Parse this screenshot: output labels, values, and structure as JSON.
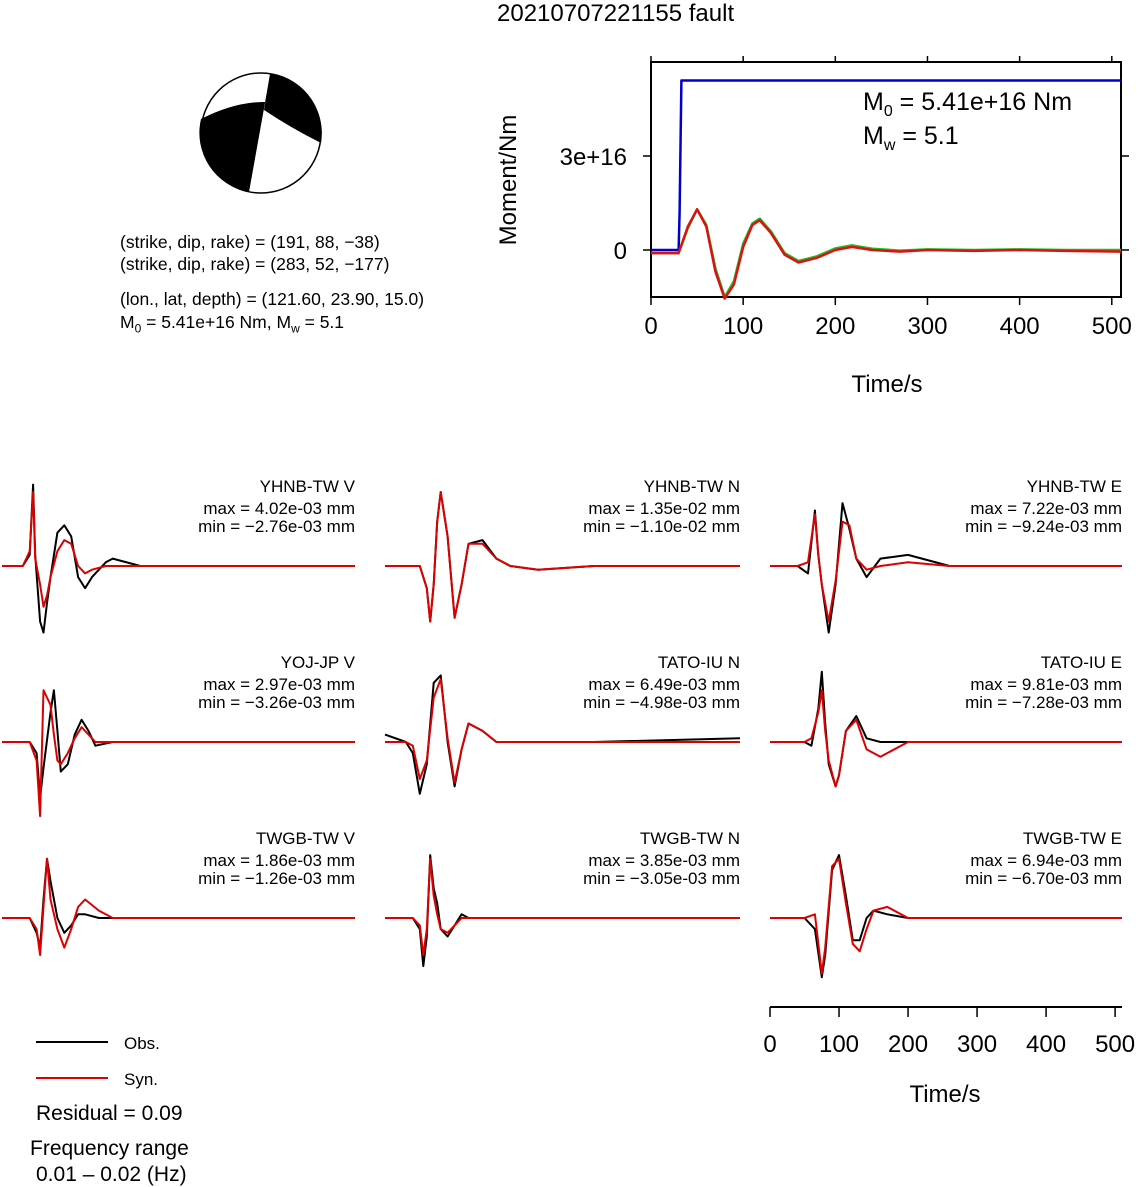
{
  "title": "20210707221155 fault",
  "beachball": {
    "colors": {
      "fill": "#000000",
      "background": "#ffffff"
    }
  },
  "info": {
    "plane1": "(strike, dip, rake) = (191, 88, −38)",
    "plane2": "(strike, dip, rake) = (283, 52, −177)",
    "location": "(lon., lat, depth) = (121.60, 23.90, 15.0)",
    "m0_prefix": "M",
    "m0_sub": "0",
    "m0_rest": " = 5.41e+16 Nm, M",
    "mw_sub": "w",
    "mw_rest": " = 5.1"
  },
  "chart_data": [
    {
      "type": "line",
      "name": "moment-rate",
      "xlabel": "Time/s",
      "ylabel": "Moment/Nm",
      "xlim": [
        0,
        510
      ],
      "ylim": [
        -15000000000000000,
        60000000000000000
      ],
      "xticks": [
        0,
        100,
        200,
        300,
        400,
        500
      ],
      "xtick_labels": [
        "0",
        "100",
        "200",
        "300",
        "400",
        "500"
      ],
      "yticks": [
        0,
        30000000000000000
      ],
      "ytick_labels": [
        "0",
        "3e+16"
      ],
      "annotation": {
        "m0_prefix": "M",
        "m0_sub": "0",
        "m0_rest": " = 5.41e+16 Nm",
        "mw_prefix": "M",
        "mw_sub": "w",
        "mw_rest": " = 5.1"
      },
      "series": [
        {
          "color": "#0000cc",
          "x": [
            0,
            30,
            31,
            33,
            510
          ],
          "y": [
            0,
            0,
            12000000000000000,
            54100000000000000,
            54100000000000000
          ]
        },
        {
          "color": "#22bb22",
          "x": [
            0,
            30,
            40,
            50,
            60,
            70,
            80,
            90,
            100,
            110,
            118,
            130,
            145,
            160,
            180,
            200,
            218,
            240,
            270,
            300,
            350,
            400,
            450,
            510
          ],
          "y": [
            -1000000000000000,
            -1000000000000000,
            7000000000000000,
            13000000000000000,
            8000000000000000,
            -6000000000000000,
            -15000000000000000,
            -10000000000000000,
            2000000000000000,
            8500000000000000,
            10000000000000000,
            6000000000000000,
            -1000000000000000,
            -3500000000000000,
            -2000000000000000,
            500000000000000,
            1500000000000000,
            400000000000000,
            -200000000000000,
            200000000000000,
            0,
            200000000000000,
            0,
            0
          ]
        },
        {
          "color": "#dd1111",
          "x": [
            0,
            30,
            40,
            50,
            60,
            70,
            80,
            90,
            100,
            110,
            118,
            130,
            145,
            160,
            180,
            200,
            218,
            240,
            270,
            300,
            350,
            400,
            450,
            510
          ],
          "y": [
            -1000000000000000,
            -1000000000000000,
            7500000000000000,
            13000000000000000,
            7500000000000000,
            -7000000000000000,
            -15500000000000000,
            -11000000000000000,
            1000000000000000,
            8000000000000000,
            9500000000000000,
            5500000000000000,
            -1500000000000000,
            -4000000000000000,
            -2500000000000000,
            0,
            1000000000000000,
            0,
            -500000000000000,
            0,
            -300000000000000,
            0,
            -300000000000000,
            -500000000000000
          ]
        }
      ]
    },
    {
      "type": "line",
      "name": "waveform-fits",
      "xlabel": "Time/s",
      "xlim": [
        0,
        510
      ],
      "xticks": [
        0,
        100,
        200,
        300,
        400,
        500
      ],
      "xtick_labels": [
        "0",
        "100",
        "200",
        "300",
        "400",
        "500"
      ],
      "series_colors": {
        "obs": "#000000",
        "syn": "#dd0000"
      },
      "traces": [
        {
          "station": "YHNB-TW V",
          "max": "max = 4.02e-03 mm",
          "min": "min = −2.76e-03 mm",
          "obs": {
            "x": [
              0,
              30,
              40,
              45,
              48,
              55,
              60,
              65,
              70,
              80,
              90,
              100,
              110,
              120,
              130,
              150,
              160,
              200,
              300,
              510
            ],
            "y": [
              0,
              0,
              0.3,
              2.2,
              0.3,
              -1.5,
              -1.8,
              -1,
              -0.3,
              0.9,
              1.1,
              0.8,
              -0.3,
              -0.6,
              -0.3,
              0.1,
              0.2,
              0,
              0,
              0
            ]
          },
          "syn": {
            "x": [
              0,
              30,
              40,
              45,
              48,
              55,
              60,
              65,
              70,
              80,
              90,
              100,
              110,
              120,
              130,
              150,
              160,
              200,
              300,
              510
            ],
            "y": [
              0,
              0,
              0.4,
              2.0,
              0.2,
              -0.5,
              -1.1,
              -0.8,
              -0.3,
              0.4,
              0.7,
              0.6,
              0.0,
              -0.2,
              -0.1,
              0.0,
              0.0,
              0,
              0,
              0
            ]
          }
        },
        {
          "station": "YHNB-TW N",
          "max": "max = 1.35e-02 mm",
          "min": "min = −1.10e-02 mm",
          "obs": {
            "x": [
              0,
              40,
              50,
              60,
              65,
              70,
              75,
              80,
              90,
              100,
              110,
              120,
              140,
              160,
              180,
              220,
              300,
              510
            ],
            "y": [
              0,
              0,
              0,
              -0.6,
              -1.5,
              -0.5,
              1.2,
              2.0,
              0.8,
              -1.4,
              -0.5,
              0.6,
              0.7,
              0.2,
              0,
              -0.1,
              0,
              0
            ]
          },
          "syn": {
            "x": [
              0,
              40,
              50,
              60,
              65,
              70,
              75,
              80,
              90,
              100,
              110,
              120,
              140,
              160,
              180,
              220,
              300,
              510
            ],
            "y": [
              0,
              0,
              0,
              -0.6,
              -1.5,
              -0.5,
              1.2,
              2.0,
              0.8,
              -1.4,
              -0.5,
              0.6,
              0.6,
              0.2,
              0,
              -0.1,
              0,
              0
            ]
          }
        },
        {
          "station": "YHNB-TW E",
          "max": "max = 7.22e-03 mm",
          "min": "min = −9.24e-03 mm",
          "obs": {
            "x": [
              0,
              40,
              55,
              65,
              70,
              75,
              85,
              95,
              105,
              115,
              125,
              140,
              160,
              200,
              260,
              510
            ],
            "y": [
              0,
              0,
              -0.2,
              1.5,
              0.3,
              -0.5,
              -1.8,
              -0.5,
              1.7,
              1.0,
              0.2,
              -0.3,
              0.2,
              0.3,
              0,
              0
            ]
          },
          "syn": {
            "x": [
              0,
              40,
              55,
              65,
              70,
              75,
              85,
              95,
              105,
              115,
              125,
              140,
              160,
              200,
              260,
              510
            ],
            "y": [
              0,
              0,
              0.1,
              1.4,
              0.3,
              -0.5,
              -1.5,
              -0.4,
              1.2,
              1.1,
              0.2,
              -0.1,
              0.0,
              0.1,
              0,
              0
            ]
          }
        },
        {
          "station": "YOJ-JP V",
          "max": "max = 2.97e-03 mm",
          "min": "min = −3.26e-03 mm",
          "obs": {
            "x": [
              0,
              40,
              50,
              55,
              60,
              70,
              75,
              80,
              85,
              95,
              105,
              115,
              125,
              135,
              160,
              510
            ],
            "y": [
              0,
              0,
              -0.3,
              -1.5,
              -0.7,
              0.8,
              1.4,
              0.3,
              -0.8,
              -0.6,
              0.2,
              0.6,
              0.3,
              -0.1,
              0,
              0
            ]
          },
          "syn": {
            "x": [
              0,
              40,
              50,
              55,
              60,
              70,
              75,
              80,
              85,
              95,
              105,
              115,
              125,
              135,
              160,
              510
            ],
            "y": [
              0,
              0,
              -0.5,
              -2.0,
              1.4,
              1.0,
              0.2,
              -0.5,
              -0.6,
              -0.3,
              0.1,
              0.4,
              0.2,
              0,
              0,
              0
            ]
          }
        },
        {
          "station": "TATO-IU N",
          "max": "max = 6.49e-03 mm",
          "min": "min = −4.98e-03 mm",
          "obs": {
            "x": [
              0,
              30,
              40,
              50,
              60,
              70,
              80,
              90,
              100,
              110,
              120,
              140,
              160,
              200,
              300,
              510
            ],
            "y": [
              0.2,
              0,
              -0.3,
              -1.4,
              -0.6,
              1.6,
              1.8,
              0,
              -1.2,
              -0.2,
              0.5,
              0.3,
              0,
              0,
              0,
              0.1
            ]
          },
          "syn": {
            "x": [
              0,
              30,
              40,
              50,
              60,
              70,
              80,
              90,
              100,
              110,
              120,
              140,
              160,
              200,
              300,
              510
            ],
            "y": [
              0,
              0,
              -0.1,
              -1.0,
              -0.5,
              1.2,
              1.7,
              0.1,
              -1.1,
              -0.2,
              0.5,
              0.3,
              0,
              0,
              0,
              0
            ]
          }
        },
        {
          "station": "TATO-IU E",
          "max": "max = 9.81e-03 mm",
          "min": "min = −7.28e-03 mm",
          "obs": {
            "x": [
              0,
              50,
              60,
              70,
              75,
              80,
              85,
              95,
              100,
              110,
              125,
              140,
              160,
              200,
              300,
              510
            ],
            "y": [
              0,
              0,
              -0.1,
              0.9,
              1.9,
              0.5,
              -0.6,
              -1.2,
              -0.9,
              0.3,
              0.7,
              0.1,
              0,
              0,
              0,
              0
            ]
          },
          "syn": {
            "x": [
              0,
              50,
              60,
              70,
              75,
              80,
              85,
              95,
              100,
              110,
              125,
              140,
              160,
              200,
              300,
              510
            ],
            "y": [
              0,
              0,
              0.1,
              0.8,
              1.4,
              0.3,
              -0.5,
              -1.2,
              -0.9,
              0.3,
              0.6,
              -0.2,
              -0.4,
              0,
              0,
              0
            ]
          }
        },
        {
          "station": "TWGB-TW V",
          "max": "max = 1.86e-03 mm",
          "min": "min = −1.26e-03 mm",
          "obs": {
            "x": [
              0,
              40,
              50,
              55,
              60,
              65,
              70,
              80,
              90,
              100,
              110,
              120,
              140,
              160,
              200,
              300,
              510
            ],
            "y": [
              0,
              0,
              -0.4,
              -0.8,
              0.5,
              1.6,
              1.0,
              0.0,
              -0.4,
              -0.2,
              0.1,
              0.1,
              0,
              0,
              0,
              0,
              0
            ]
          },
          "syn": {
            "x": [
              0,
              40,
              50,
              55,
              60,
              65,
              70,
              80,
              90,
              100,
              110,
              120,
              140,
              160,
              200,
              300,
              510
            ],
            "y": [
              0,
              0,
              -0.3,
              -1.0,
              0.3,
              1.6,
              0.5,
              -0.3,
              -0.8,
              -0.3,
              0.3,
              0.5,
              0.2,
              0,
              0,
              0,
              0
            ]
          }
        },
        {
          "station": "TWGB-TW N",
          "max": "max = 3.85e-03 mm",
          "min": "min = −3.05e-03 mm",
          "obs": {
            "x": [
              0,
              40,
              50,
              55,
              60,
              65,
              70,
              75,
              80,
              90,
              100,
              110,
              120,
              140,
              160,
              200,
              300,
              510
            ],
            "y": [
              0,
              0,
              -0.3,
              -1.3,
              -0.5,
              1.7,
              0.8,
              0.4,
              -0.3,
              -0.5,
              -0.2,
              0.1,
              0,
              0,
              0,
              0,
              0,
              0
            ]
          },
          "syn": {
            "x": [
              0,
              40,
              50,
              55,
              60,
              65,
              70,
              75,
              80,
              90,
              100,
              110,
              120,
              140,
              160,
              200,
              300,
              510
            ],
            "y": [
              0,
              0,
              -0.2,
              -1.0,
              -0.3,
              1.6,
              0.6,
              0.1,
              -0.3,
              -0.4,
              -0.2,
              0.0,
              0,
              0,
              0,
              0,
              0,
              0
            ]
          }
        },
        {
          "station": "TWGB-TW E",
          "max": "max = 6.94e-03 mm",
          "min": "min = −6.70e-03 mm",
          "obs": {
            "x": [
              0,
              50,
              65,
              75,
              80,
              90,
              100,
              110,
              120,
              130,
              140,
              150,
              170,
              200,
              300,
              510
            ],
            "y": [
              0,
              0,
              -0.3,
              -1.6,
              -1.0,
              1.3,
              1.7,
              0.6,
              -0.6,
              -0.6,
              0.0,
              0.2,
              0.1,
              0,
              0,
              0
            ]
          },
          "syn": {
            "x": [
              0,
              50,
              65,
              75,
              80,
              90,
              100,
              110,
              120,
              130,
              140,
              150,
              170,
              200,
              300,
              510
            ],
            "y": [
              0,
              0,
              0.1,
              -1.5,
              -0.8,
              1.4,
              1.6,
              0.4,
              -0.7,
              -0.9,
              -0.3,
              0.2,
              0.3,
              0,
              0,
              0
            ]
          }
        }
      ],
      "legend": {
        "obs": "Obs.",
        "syn": "Syn."
      }
    }
  ],
  "footer": {
    "residual": "Residual = 0.09",
    "freq_label": "Frequency range",
    "freq_value": "0.01 – 0.02 (Hz)"
  }
}
